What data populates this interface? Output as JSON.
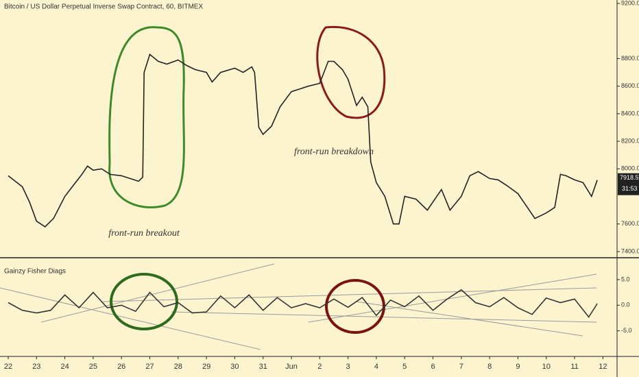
{
  "chart_data": [
    {
      "type": "line",
      "title": "Bitcoin / US Dollar Perpetual Inverse Swap Contract, 60, BITMEX",
      "color": "#222222",
      "x": [
        0,
        0.5,
        0.75,
        1,
        1.3,
        1.6,
        2,
        2.3,
        2.6,
        2.8,
        3,
        3.3,
        3.6,
        4,
        4.3,
        4.6,
        4.75,
        4.8,
        5,
        5.3,
        5.6,
        6,
        6.3,
        6.6,
        7,
        7.2,
        7.5,
        8,
        8.3,
        8.6,
        8.7,
        8.85,
        9,
        9.3,
        9.6,
        10,
        10.3,
        10.6,
        11,
        11.3,
        11.5,
        11.8,
        12,
        12.3,
        12.5,
        12.7,
        12.8,
        13,
        13.3,
        13.6,
        13.8,
        14,
        14.4,
        14.8,
        15,
        15.3,
        15.6,
        16,
        16.3,
        16.6,
        17,
        17.3,
        17.6,
        18,
        18.3,
        18.6,
        19,
        19.3,
        19.5,
        19.7,
        20,
        20.3,
        20.6,
        20.8
      ],
      "values": [
        7950,
        7870,
        7760,
        7620,
        7580,
        7640,
        7800,
        7880,
        7960,
        8020,
        7990,
        8000,
        7960,
        7950,
        7930,
        7910,
        7940,
        8700,
        8830,
        8780,
        8760,
        8790,
        8750,
        8720,
        8700,
        8630,
        8700,
        8730,
        8700,
        8740,
        8700,
        8300,
        8250,
        8310,
        8450,
        8560,
        8580,
        8600,
        8620,
        8780,
        8780,
        8720,
        8650,
        8460,
        8520,
        8450,
        8050,
        7900,
        7800,
        7600,
        7600,
        7800,
        7780,
        7700,
        7760,
        7850,
        7700,
        7800,
        7950,
        7980,
        7930,
        7920,
        7880,
        7820,
        7730,
        7640,
        7680,
        7720,
        7960,
        7950,
        7920,
        7900,
        7800,
        7918.5
      ],
      "ylim": [
        7360,
        9225
      ],
      "yticks": [
        {
          "value": 7400,
          "label": "7400.0"
        },
        {
          "value": 7600,
          "label": "7600.0"
        },
        {
          "value": 8000,
          "label": "8000.0"
        },
        {
          "value": 8200,
          "label": "8200.0"
        },
        {
          "value": 8400,
          "label": "8400.0"
        },
        {
          "value": 8600,
          "label": "8600.0"
        },
        {
          "value": 8800,
          "label": "8800.0"
        },
        {
          "value": 9200,
          "label": "9200.0"
        }
      ],
      "xlim": [
        -0.29,
        21.5
      ],
      "last_price": 7918.5,
      "countdown": "31:53",
      "annotations": [
        {
          "text": "front-run breakout",
          "color": "#3e8a2a"
        },
        {
          "text": "front-run breakdown",
          "color": "#8b1a1a"
        }
      ]
    },
    {
      "type": "line",
      "title": "Gainzy Fisher Diags",
      "color": "#333333",
      "x": [
        0,
        0.5,
        1,
        1.5,
        2,
        2.5,
        3,
        3.5,
        4,
        4.5,
        5,
        5.5,
        6,
        6.5,
        7,
        7.5,
        8,
        8.5,
        9,
        9.5,
        10,
        10.5,
        11,
        11.5,
        12,
        12.5,
        13,
        13.5,
        14,
        14.5,
        15,
        15.5,
        16,
        16.5,
        17,
        17.5,
        18,
        18.5,
        19,
        19.5,
        20,
        20.5,
        20.8
      ],
      "values": [
        0.5,
        -1,
        -1.5,
        -1,
        2,
        -0.5,
        2.5,
        -0.5,
        0,
        -1.2,
        2.5,
        -0.3,
        0.5,
        -1.5,
        -1.3,
        1.8,
        -0.5,
        2,
        -1,
        1.5,
        -0.5,
        0.3,
        -0.5,
        1.2,
        -0.4,
        1.5,
        -2,
        1,
        -0.3,
        1.8,
        -1,
        1.2,
        3,
        0.5,
        -0.3,
        1.5,
        -0.5,
        -1.8,
        1.4,
        0.5,
        1.2,
        -2.3,
        0.3
      ],
      "ylim": [
        -10,
        9
      ],
      "yticks": [
        {
          "value": -5,
          "label": "-5.0"
        },
        {
          "value": 0,
          "label": "0.0"
        },
        {
          "value": 5,
          "label": "5.0"
        }
      ],
      "xlim": [
        -0.29,
        21.5
      ],
      "xticks": [
        {
          "value": 0,
          "label": "22"
        },
        {
          "value": 1,
          "label": "23"
        },
        {
          "value": 2,
          "label": "24"
        },
        {
          "value": 3,
          "label": "25"
        },
        {
          "value": 4,
          "label": "26"
        },
        {
          "value": 5,
          "label": "27"
        },
        {
          "value": 6,
          "label": "28"
        },
        {
          "value": 7,
          "label": "29"
        },
        {
          "value": 8,
          "label": "30"
        },
        {
          "value": 9,
          "label": "31"
        },
        {
          "value": 10,
          "label": "Jun"
        },
        {
          "value": 11,
          "label": "2"
        },
        {
          "value": 12,
          "label": "3"
        },
        {
          "value": 13,
          "label": "4"
        },
        {
          "value": 14,
          "label": "5"
        },
        {
          "value": 15,
          "label": "6"
        },
        {
          "value": 16,
          "label": "7"
        },
        {
          "value": 17,
          "label": "8"
        },
        {
          "value": 18,
          "label": "9"
        },
        {
          "value": 19,
          "label": "10"
        },
        {
          "value": 20,
          "label": "11"
        },
        {
          "value": 21,
          "label": "12"
        }
      ]
    }
  ]
}
